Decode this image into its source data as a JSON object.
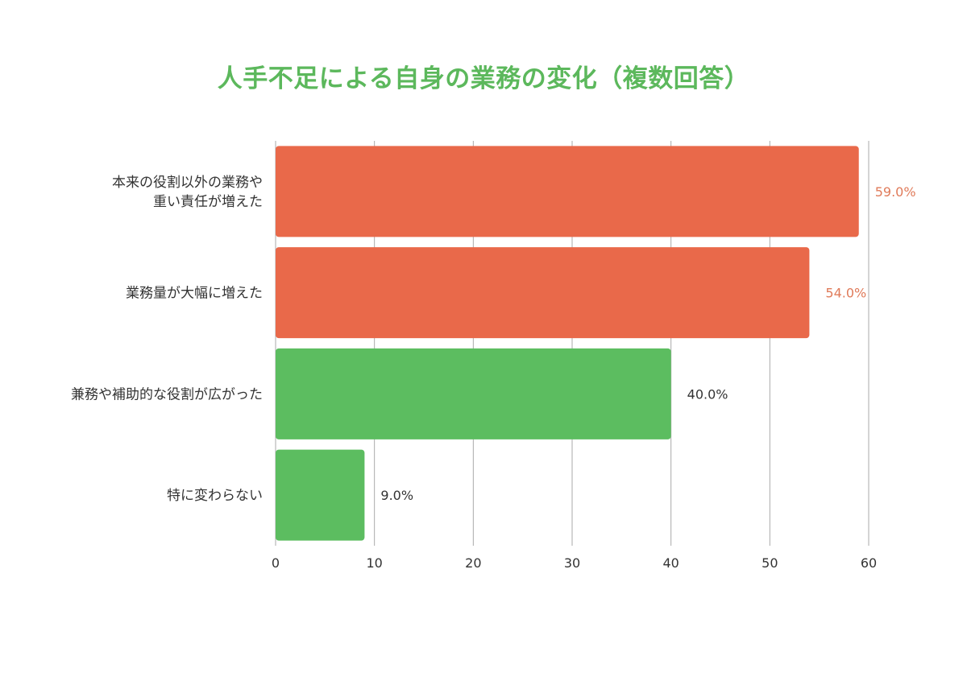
{
  "chart_data": {
    "type": "bar",
    "orientation": "horizontal",
    "title": "人手不足による自身の業務の変化（複数回答）",
    "categories": [
      [
        "本来の役割以外の業務や",
        "重い責任が増えた"
      ],
      [
        "業務量が大幅に増えた"
      ],
      [
        "兼務や補助的な役割が広がった"
      ],
      [
        "特に変わらない"
      ]
    ],
    "values": [
      59.0,
      54.0,
      40.0,
      9.0
    ],
    "value_labels": [
      "59.0%",
      "54.0%",
      "40.0%",
      "9.0%"
    ],
    "bar_colors": [
      "#E9694A",
      "#E9694A",
      "#5CBD60",
      "#5CBD60"
    ],
    "label_colors": [
      "#E07B5A",
      "#E07B5A",
      "#333333",
      "#333333"
    ],
    "xlim": [
      0,
      60
    ],
    "xticks": [
      0,
      10,
      20,
      30,
      40,
      50,
      60
    ],
    "grid": true,
    "legend": "none"
  },
  "colors": {
    "title": "#5CB85C",
    "grid": "#AAAAAA",
    "text": "#333333"
  }
}
